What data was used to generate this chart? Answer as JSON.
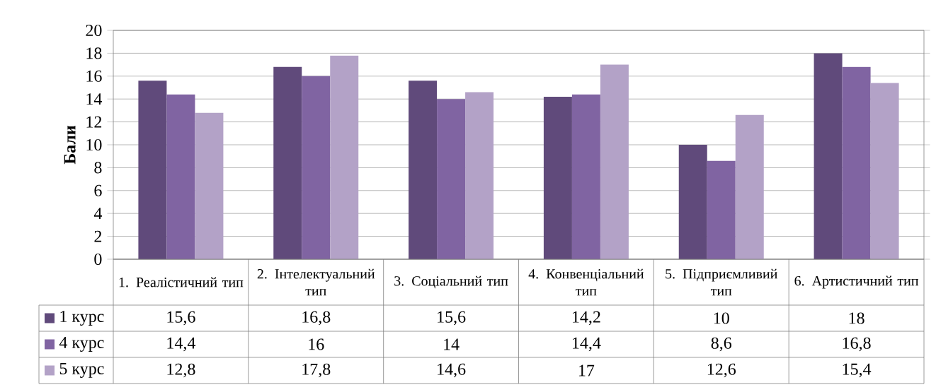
{
  "chart_data": {
    "type": "bar",
    "ylabel": "Бали",
    "categories": [
      "1. Реалістичний тип",
      "2. Інтелектуальний тип",
      "3. Соціальний тип",
      "4. Конвенціальний тип",
      "5. Підприємливий тип",
      "6. Артистичний тип"
    ],
    "series": [
      {
        "name": "1 курс",
        "color": "#604a7b",
        "values": [
          15.6,
          16.8,
          15.6,
          14.2,
          10,
          18
        ],
        "value_labels": [
          "15,6",
          "16,8",
          "15,6",
          "14,2",
          "10",
          "18"
        ]
      },
      {
        "name": "4 курс",
        "color": "#8064a2",
        "values": [
          14.4,
          16,
          14,
          14.4,
          8.6,
          16.8
        ],
        "value_labels": [
          "14,4",
          "16",
          "14",
          "14,4",
          "8,6",
          "16,8"
        ]
      },
      {
        "name": "5 курс",
        "color": "#b3a2c7",
        "values": [
          12.8,
          17.8,
          14.6,
          17,
          12.6,
          15.4
        ],
        "value_labels": [
          "12,8",
          "17,8",
          "14,6",
          "17",
          "12,6",
          "15,4"
        ]
      }
    ],
    "ylim": [
      0,
      20
    ],
    "yticks": [
      0,
      2,
      4,
      6,
      8,
      10,
      12,
      14,
      16,
      18,
      20
    ],
    "grid": "y",
    "legend": "bottom"
  }
}
